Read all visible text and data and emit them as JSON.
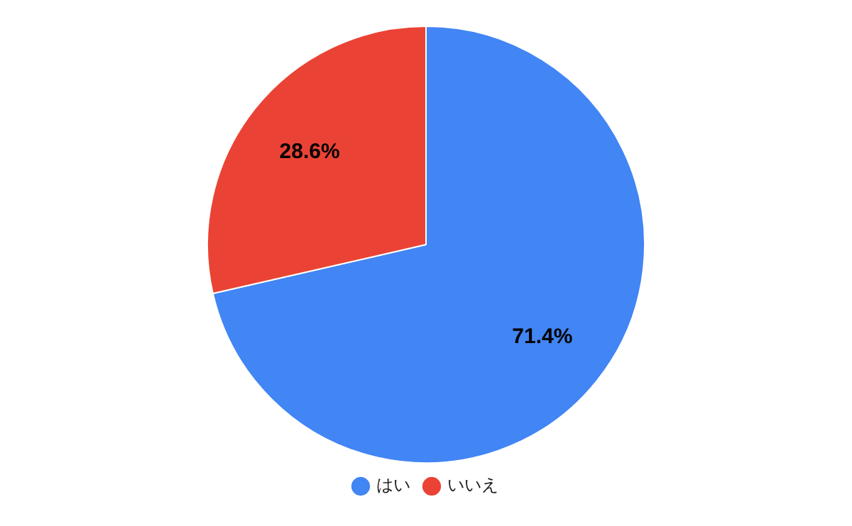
{
  "chart_data": {
    "type": "pie",
    "categories": [
      "はい",
      "いいえ"
    ],
    "values": [
      71.4,
      28.6
    ],
    "colors": [
      "#4285f4",
      "#ea4335"
    ],
    "value_labels": [
      "71.4%",
      "28.6%"
    ],
    "legend": "bottom"
  }
}
